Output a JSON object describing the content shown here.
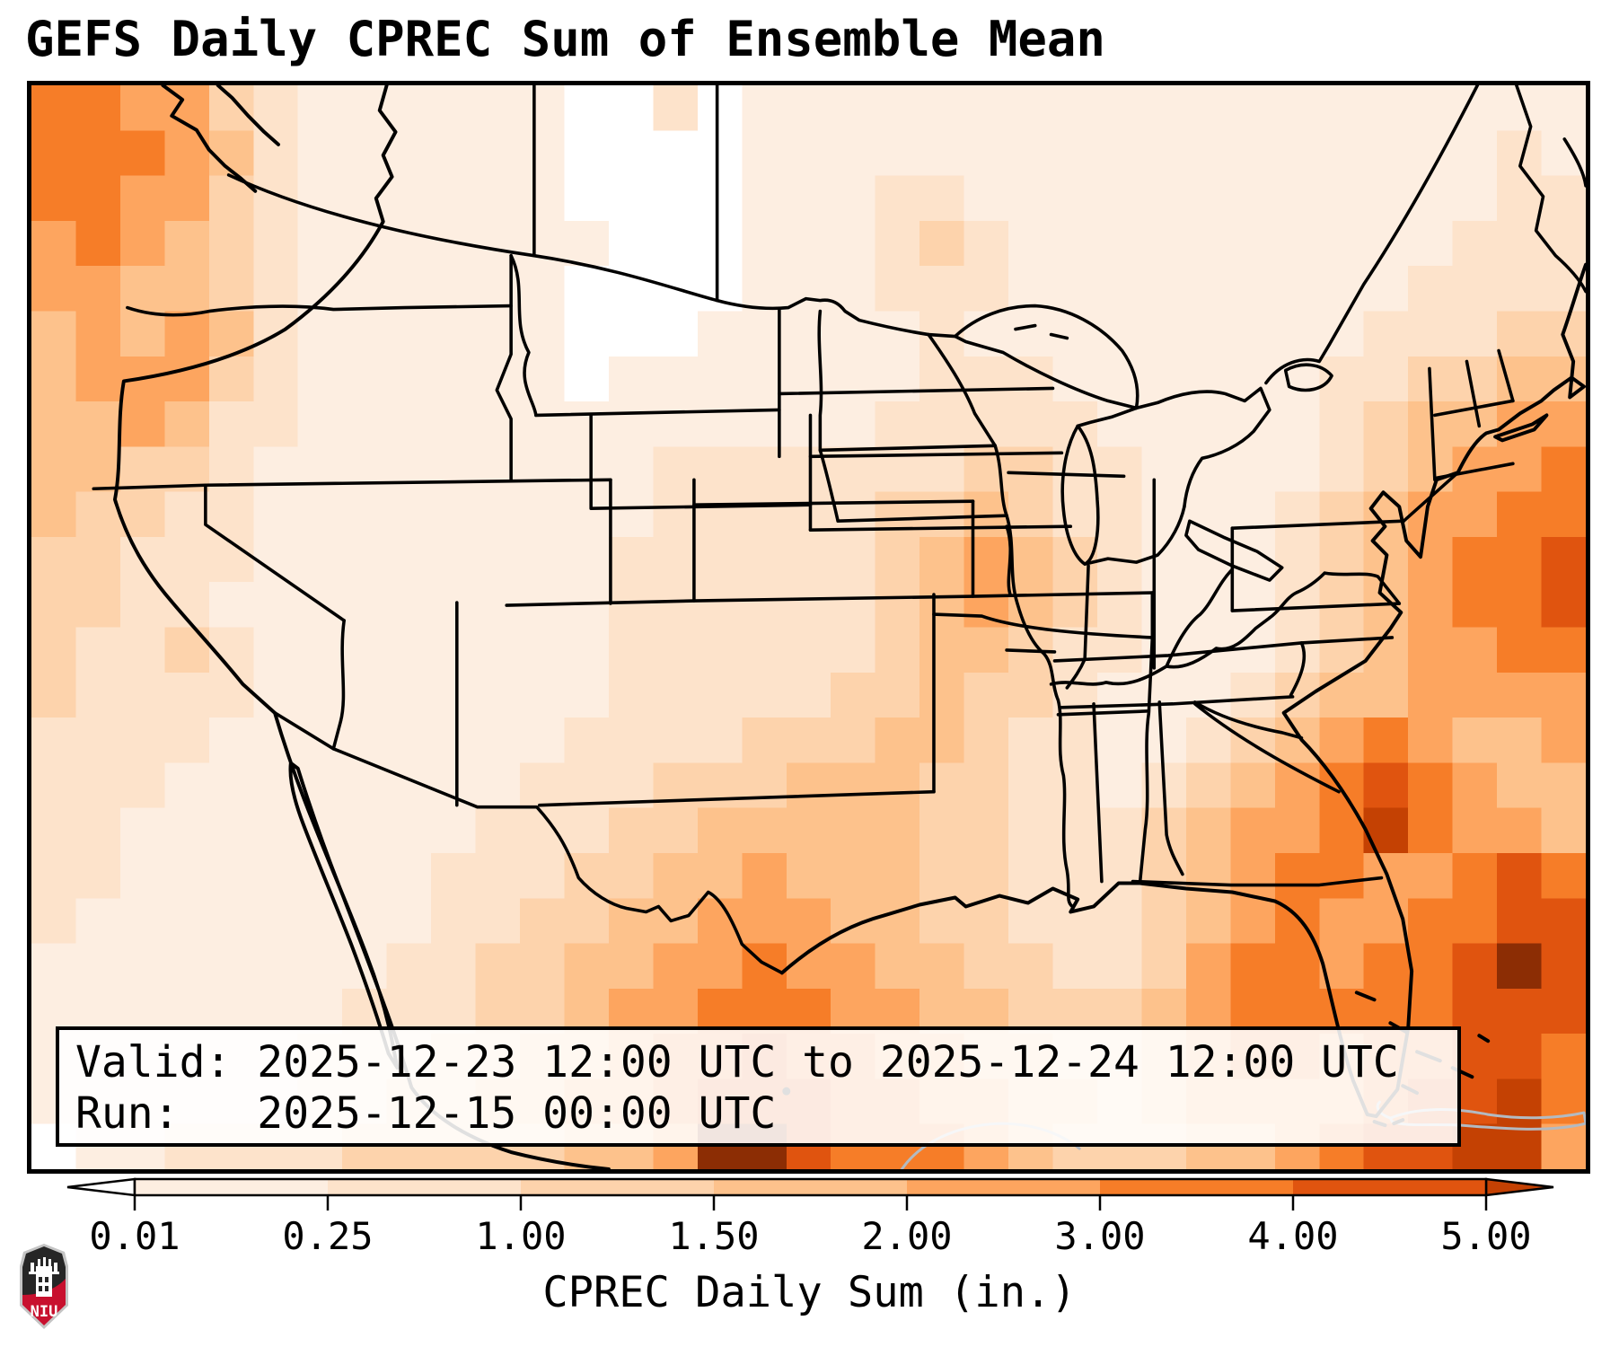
{
  "title": "GEFS Daily CPREC Sum of Ensemble Mean",
  "info_box": {
    "valid_line": "Valid: 2025-12-23 12:00 UTC to 2025-12-24 12:00 UTC",
    "run_line": "Run:   2025-12-15 00:00 UTC"
  },
  "colorbar": {
    "label": "CPREC Daily Sum (in.)",
    "tick_labels": [
      "0.01",
      "0.25",
      "1.00",
      "1.50",
      "2.00",
      "3.00",
      "4.00",
      "5.00"
    ],
    "under_color": "#ffffff",
    "over_color": "#c44103",
    "segment_colors": [
      "#fdeee1",
      "#fde3cb",
      "#fdd3ac",
      "#fdc28c",
      "#fda55f",
      "#f67d28",
      "#e0540f"
    ],
    "outline_color": "#000000"
  },
  "logo": {
    "text": "NIU",
    "shield_top_color": "#262626",
    "shield_bottom_color": "#c8102e",
    "border_color": "#c4c4c4"
  },
  "chart_data": {
    "type": "heatmap",
    "title": "GEFS Daily CPREC Sum of Ensemble Mean",
    "variable": "CPREC Daily Sum",
    "units": "in.",
    "model": "GEFS",
    "statistic": "Sum of Ensemble Mean",
    "valid_from": "2025-12-23 12:00 UTC",
    "valid_to": "2025-12-24 12:00 UTC",
    "run": "2025-12-15 00:00 UTC",
    "region": "CONUS and adjacent ocean",
    "levels_in": [
      0.01,
      0.25,
      1.0,
      1.5,
      2.0,
      3.0,
      4.0,
      5.0
    ],
    "legend_position": "bottom",
    "palette": [
      "#ffffff",
      "#fdeee1",
      "#fde3cb",
      "#fdd3ac",
      "#fdc28c",
      "#fda55f",
      "#f67d28",
      "#e0540f",
      "#c44103",
      "#8c2d04"
    ],
    "grid": {
      "cols": 35,
      "rows": 24,
      "note": "approximate precipitation intensity field; digits index palette (0 = <0.01 in, 7 = 4-5 in, 8 = >5 in, 9 = extreme)",
      "cell_values": [
        "66553211111100201111111111111111111",
        "66654211111100001111111111111111121",
        "66553211111100001112211111111111122",
        "56543211111110001112321111111111222",
        "55443211111100001112221111111112222",
        "45454211111100011111211111111122233",
        "45553211111101111111222111111223344",
        "44542211111111111112222211111234455",
        "44332111111111222222233221111234556",
        "43322111111111222223343221112345566",
        "33222111111112222223454321112345667",
        "33221111111112222223454321112345667",
        "32232111111112222223443221112345566",
        "32222111111112222233433211123445555",
        "22221111111122223334432211234565445",
        "22211111111222333444332212345676544",
        "22111111112223344444332223455686554",
        "22111111122233445444332223456655676",
        "21111111122334455544332223456556677",
        "11111111223344556554433223566566797",
        "11111112223345566655443334566666777",
        "11111122233445667665544334566566776",
        "11111122334455677766554434555567786",
        "01122223333344599766654333445677885"
      ]
    }
  }
}
